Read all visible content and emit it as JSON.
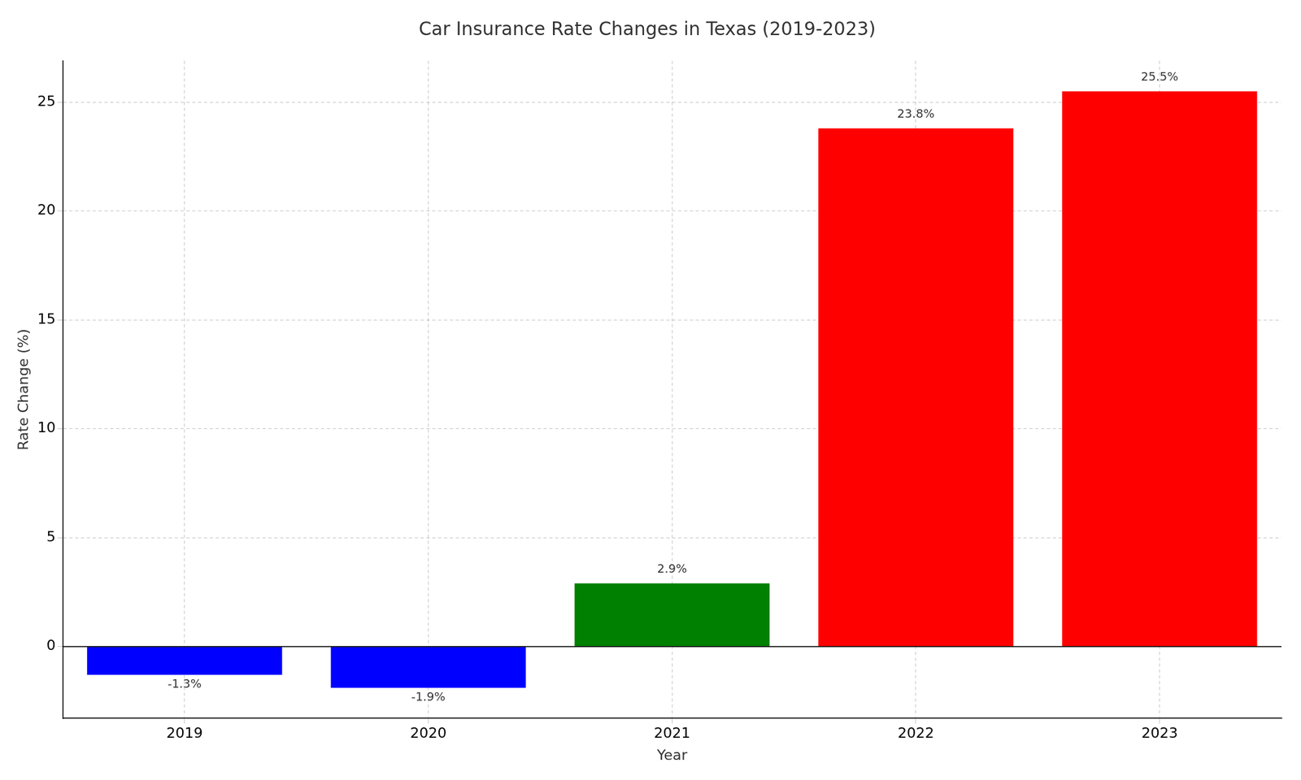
{
  "chart_data": {
    "type": "bar",
    "title": "Car Insurance Rate Changes in Texas (2019-2023)",
    "x_label": "Year",
    "y_label": "Rate Change (%)",
    "categories": [
      "2019",
      "2020",
      "2021",
      "2022",
      "2023"
    ],
    "values": [
      -1.3,
      -1.9,
      2.9,
      23.8,
      25.5
    ],
    "value_labels": [
      "-1.3%",
      "-1.9%",
      "2.9%",
      "23.8%",
      "25.5%"
    ],
    "colors": [
      "#0000ff",
      "#0000ff",
      "#008000",
      "#ff0000",
      "#ff0000"
    ],
    "ylim": [
      -3.3,
      26.9
    ],
    "yticks": [
      0,
      5,
      10,
      15,
      20,
      25
    ],
    "grid": true,
    "data_labels": true
  }
}
